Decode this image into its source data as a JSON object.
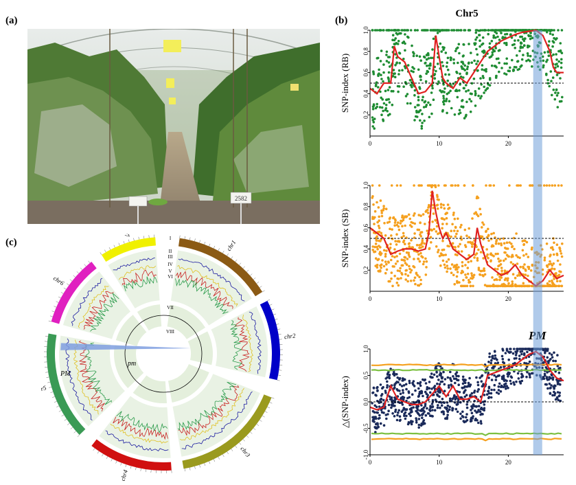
{
  "panels": {
    "a": "(a)",
    "b": "(b)",
    "c": "(c)"
  },
  "photo": {
    "sign_label": "2582"
  },
  "circos": {
    "chromosomes": [
      {
        "name": "chr1",
        "color": "#8B5A14"
      },
      {
        "name": "chr2",
        "color": "#0000C8"
      },
      {
        "name": "chr3",
        "color": "#9A9A1E"
      },
      {
        "name": "chr4",
        "color": "#D01010"
      },
      {
        "name": "chr5",
        "color": "#3A9A55"
      },
      {
        "name": "chr6",
        "color": "#E020C0"
      },
      {
        "name": "chr7",
        "color": "#F0F000"
      }
    ],
    "track_labels": [
      "I",
      "II",
      "III",
      "IV",
      "V",
      "VI",
      "VII",
      "VIII"
    ],
    "pm_label": "pm",
    "PM_label": "PM"
  },
  "chart_data": [
    {
      "type": "scatter",
      "title": "Chr5",
      "ylabel": "SNP-index (RB)",
      "ylim": [
        0,
        1.0
      ],
      "xlim": [
        0,
        28
      ],
      "xticks": [
        0,
        10,
        20
      ],
      "yticks": [
        0.2,
        0.4,
        0.6,
        0.8,
        1.0
      ],
      "threshold": 0.5,
      "point_color": "#1E8C32",
      "line_color": "#E02020",
      "smoothed_line": {
        "x": [
          0,
          1,
          2,
          3,
          3.5,
          4,
          5,
          6,
          7,
          8,
          9,
          9.5,
          10,
          10.5,
          11,
          12,
          13,
          14,
          15,
          16,
          17,
          18,
          19,
          20,
          21,
          22,
          23,
          24,
          25,
          26,
          26.5,
          27,
          28
        ],
        "y": [
          0.45,
          0.4,
          0.5,
          0.5,
          0.85,
          0.75,
          0.7,
          0.55,
          0.4,
          0.42,
          0.5,
          0.95,
          0.75,
          0.55,
          0.5,
          0.45,
          0.55,
          0.5,
          0.6,
          0.7,
          0.8,
          0.85,
          0.9,
          0.93,
          0.96,
          0.98,
          0.99,
          1.0,
          0.95,
          0.8,
          0.65,
          0.6,
          0.6
        ]
      },
      "region": {
        "start": 23.6,
        "end": 24.9
      }
    },
    {
      "type": "scatter",
      "ylabel": "SNP-index (SB)",
      "ylim": [
        0,
        1.0
      ],
      "xlim": [
        0,
        28
      ],
      "xticks": [
        0,
        10,
        20
      ],
      "yticks": [
        0.2,
        0.4,
        0.6,
        0.8,
        1.0
      ],
      "threshold": 0.5,
      "point_color": "#F5A01E",
      "line_color": "#E02020",
      "smoothed_line": {
        "x": [
          0,
          1,
          2,
          3,
          4,
          5,
          6,
          7,
          8,
          8.5,
          9,
          9.5,
          10,
          10.5,
          11,
          12,
          13,
          14,
          15,
          15.5,
          16,
          17,
          18,
          19,
          20,
          21,
          22,
          23,
          24,
          25,
          26,
          27,
          28
        ],
        "y": [
          0.6,
          0.55,
          0.5,
          0.35,
          0.38,
          0.4,
          0.4,
          0.38,
          0.4,
          0.55,
          0.95,
          0.75,
          0.6,
          0.5,
          0.55,
          0.4,
          0.35,
          0.3,
          0.35,
          0.6,
          0.45,
          0.25,
          0.2,
          0.15,
          0.18,
          0.25,
          0.15,
          0.1,
          0.05,
          0.1,
          0.2,
          0.12,
          0.15
        ]
      },
      "region": {
        "start": 23.6,
        "end": 24.9
      }
    },
    {
      "type": "scatter",
      "ylabel": "△(SNP-index)",
      "annotation": "PM",
      "ylim": [
        -1.0,
        1.0
      ],
      "xlim": [
        0,
        28
      ],
      "xticks": [
        0,
        10,
        20
      ],
      "yticks": [
        -1.0,
        -0.5,
        0,
        0.5,
        1.0
      ],
      "threshold": 0,
      "point_color": "#1A2A5A",
      "line_color": "#E02020",
      "ci95_color": "#7CC040",
      "ci99_color": "#F5A01E",
      "smoothed_line": {
        "x": [
          0,
          1,
          2,
          3,
          4,
          5,
          6,
          7,
          8,
          9,
          10,
          11,
          12,
          13,
          14,
          15,
          16,
          17,
          18,
          19,
          20,
          21,
          22,
          23,
          24,
          25,
          26,
          27,
          28
        ],
        "y": [
          -0.1,
          -0.15,
          -0.1,
          0.3,
          0.05,
          0.0,
          -0.05,
          -0.05,
          0.0,
          0.15,
          0.3,
          0.1,
          0.3,
          0.05,
          0.05,
          0.1,
          0.0,
          0.5,
          0.55,
          0.6,
          0.65,
          0.7,
          0.8,
          0.9,
          0.95,
          0.85,
          0.6,
          0.45,
          0.4
        ]
      },
      "ci99_upper": 0.7,
      "ci95_upper": 0.6,
      "ci95_lower": -0.6,
      "ci99_lower": -0.7,
      "region": {
        "start": 23.6,
        "end": 24.9
      }
    }
  ]
}
